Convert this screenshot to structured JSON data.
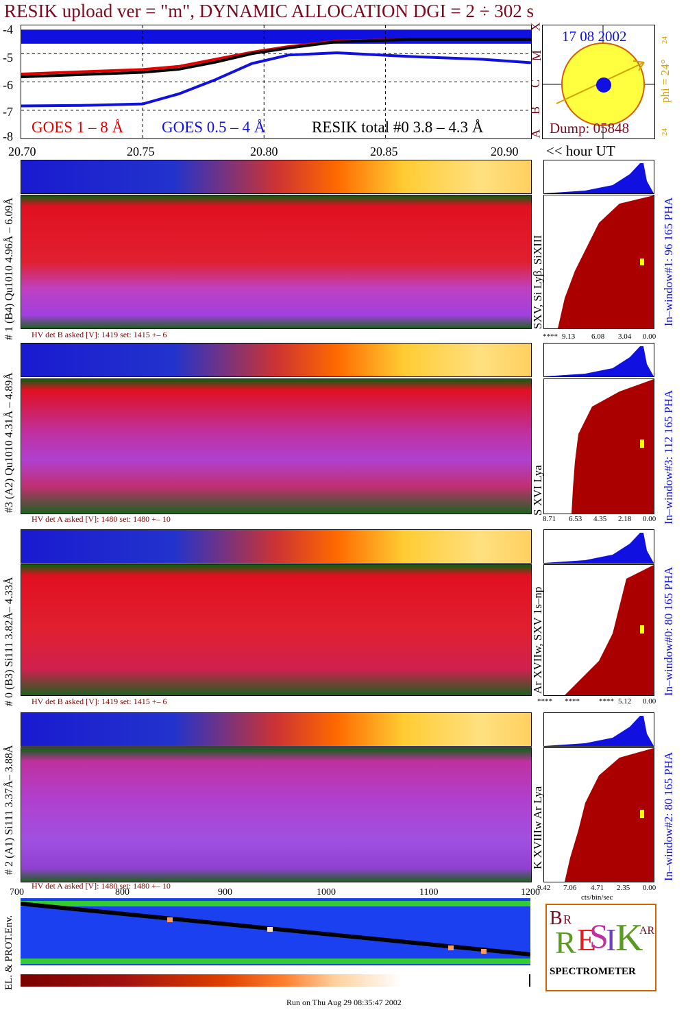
{
  "title": "RESIK upload ver = \"m\", DYNAMIC ALLOCATION  DGI =   2 ÷ 302 s",
  "footer": "Run on Thu Aug 29 08:35:47 2002",
  "goes": {
    "y_ticks": [
      "-4",
      "-5",
      "-6",
      "-7",
      "-8"
    ],
    "class_labels": [
      "X",
      "M",
      "C",
      "B",
      "A"
    ],
    "legend": {
      "goes18": "GOES 1 – 8 Å",
      "goes054": "GOES 0.5 – 4 Å",
      "resik": "RESIK total #0  3.8 – 4.3 Å"
    },
    "x_ticks": [
      "20.70",
      "20.75",
      "20.80",
      "20.85",
      "20.90"
    ],
    "x_unit_label": "<< hour UT"
  },
  "sun": {
    "date": "17 08 2002",
    "phi": "phi = 24°",
    "left_tick": "24",
    "right_tick": "24",
    "dump": "Dump: 05848"
  },
  "channels": [
    {
      "left_label": "# 1 (B4) Qu1010 4.96Å – 6.09Å",
      "right_label": "SXV, Si Lyβ, SiXIII",
      "hv": "HV det B asked [V]:  1419 set:  1415 +–    6",
      "window": "In–window#1:  96 165 PHA",
      "axis": [
        "****",
        "9.13",
        "6.08",
        "3.04",
        "0.00"
      ]
    },
    {
      "left_label": "#3 (A2) Qu1010  4.31Å – 4.89Å",
      "right_label": "S XVI Lya",
      "hv": "HV det A asked [V]:  1480 set:  1480 +–    10",
      "window": "In–window#3:  112 165 PHA",
      "axis": [
        "8.71",
        "6.53",
        "4.35",
        "2.18",
        "0.00"
      ]
    },
    {
      "left_label": "# 0 (B3) Si111  3.82Å– 4.33Å",
      "right_label": "Ar XVIIw,  SXV 1s–np",
      "hv": "HV det B asked [V]:  1419 set:  1415 +–    6",
      "window": "In–window#0:   80 165 PHA",
      "axis": [
        "****",
        "****",
        "****",
        "5.12",
        "0.00"
      ]
    },
    {
      "left_label": "# 2 (A1) Si111  3.37Å– 3.88Å",
      "right_label": "K XVIIIw   Ar Lya",
      "hv": "HV det A asked [V]:  1480 set:  1480 +–    10",
      "window": "In–window#2:   80 165 PHA",
      "axis": [
        "9.42",
        "7.06",
        "4.71",
        "2.35",
        "0.00"
      ]
    }
  ],
  "pha_unit": "cts/bin/sec",
  "env": {
    "label": "EL. & PROT.Env.",
    "x_ticks": [
      "700",
      "800",
      "900",
      "1000",
      "1100",
      "1200"
    ]
  },
  "logo": {
    "text": "SPECTROMETER"
  },
  "chart_data": {
    "type": "line",
    "title": "RESIK upload ver = \"m\", DYNAMIC ALLOCATION  DGI =   2 ÷ 302 s",
    "xlabel": "<< hour UT",
    "ylabel": "",
    "xlim": [
      20.7,
      20.91
    ],
    "ylim": [
      -8,
      -4
    ],
    "x": [
      20.7,
      20.725,
      20.75,
      20.765,
      20.78,
      20.795,
      20.81,
      20.83,
      20.86,
      20.89,
      20.91
    ],
    "series": [
      {
        "name": "GOES 1 – 8 Å",
        "color": "#e00000",
        "values": [
          -5.72,
          -5.64,
          -5.56,
          -5.45,
          -5.2,
          -4.95,
          -4.75,
          -4.55,
          -4.5,
          -4.5,
          -4.5
        ]
      },
      {
        "name": "RESIK total #0  3.8 – 4.3 Å",
        "color": "#000000",
        "values": [
          -5.82,
          -5.74,
          -5.66,
          -5.55,
          -5.3,
          -5.0,
          -4.8,
          -4.58,
          -4.5,
          -4.5,
          -4.5
        ]
      },
      {
        "name": "GOES 0.5 – 4 Å",
        "color": "#1010e0",
        "values": [
          -6.85,
          -6.83,
          -6.78,
          -6.42,
          -5.92,
          -5.35,
          -5.05,
          -4.97,
          -5.1,
          -5.2,
          -5.32
        ]
      }
    ],
    "grid": true,
    "legend": "bottom"
  }
}
